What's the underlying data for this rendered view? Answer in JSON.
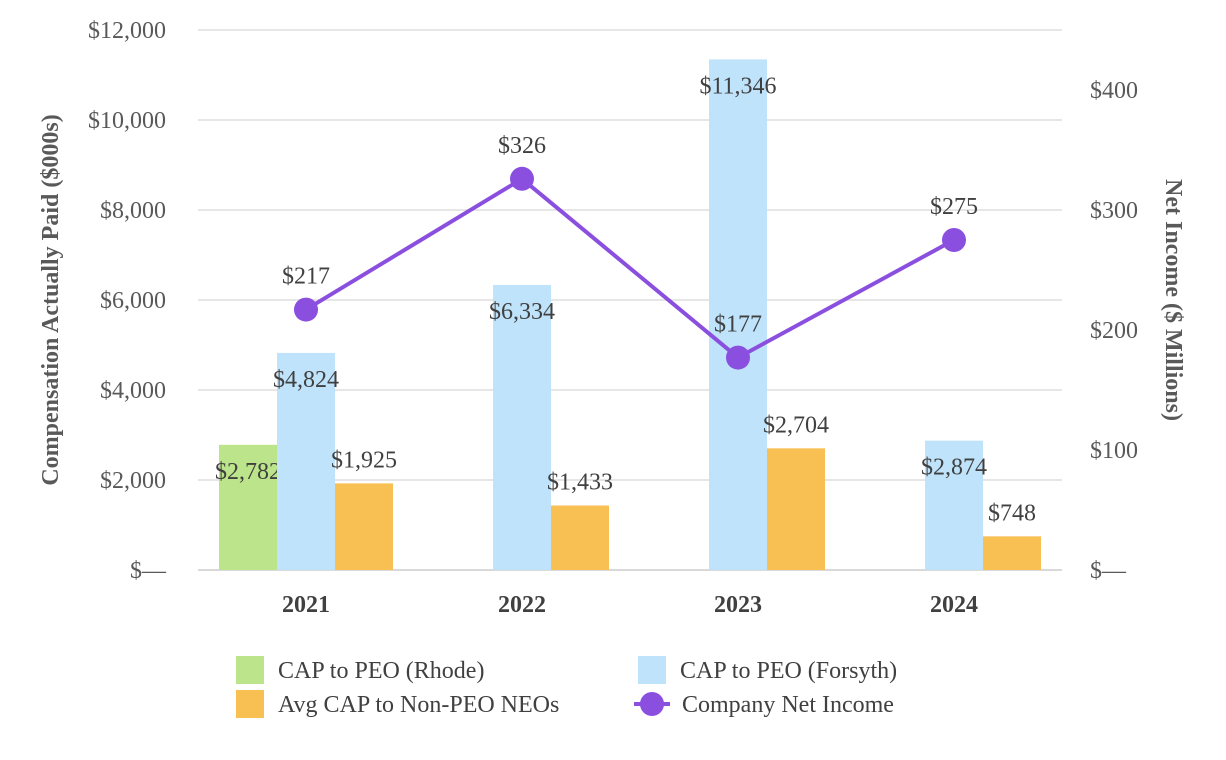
{
  "chart_data": {
    "type": "bar+line",
    "categories": [
      "2021",
      "2022",
      "2023",
      "2024"
    ],
    "left_axis": {
      "label": "Compensation Actually Paid ($000s)",
      "ylim": [
        0,
        12000
      ],
      "ticks": [
        0,
        2000,
        4000,
        6000,
        8000,
        10000,
        12000
      ],
      "tick_labels": [
        "$—",
        "$2,000",
        "$4,000",
        "$6,000",
        "$8,000",
        "$10,000",
        "$12,000"
      ]
    },
    "right_axis": {
      "label": "Net Income ($ Millions)",
      "ylim": [
        0,
        450
      ],
      "ticks": [
        0,
        100,
        200,
        300,
        400
      ],
      "tick_labels": [
        "$—",
        "$100",
        "$200",
        "$300",
        "$400"
      ]
    },
    "series": [
      {
        "name": "CAP to PEO (Rhode)",
        "type": "bar",
        "color": "#BCE48A",
        "values": [
          2782,
          null,
          null,
          null
        ],
        "labels": [
          "$2,782",
          null,
          null,
          null
        ]
      },
      {
        "name": "CAP to PEO (Forsyth)",
        "type": "bar",
        "color": "#BFE3FA",
        "values": [
          4824,
          6334,
          11346,
          2874
        ],
        "labels": [
          "$4,824",
          "$6,334",
          "$11,346",
          "$2,874"
        ]
      },
      {
        "name": "Avg CAP to Non-PEO NEOs",
        "type": "bar",
        "color": "#F8BF52",
        "values": [
          1925,
          1433,
          2704,
          748
        ],
        "labels": [
          "$1,925",
          "$1,433",
          "$2,704",
          "$748"
        ]
      },
      {
        "name": "Company Net Income",
        "type": "line",
        "axis": "right",
        "color": "#8B4FE0",
        "values": [
          217,
          326,
          177,
          275
        ],
        "labels": [
          "$217",
          "$326",
          "$177",
          "$275"
        ]
      }
    ],
    "legend": {
      "placement": "bottom",
      "order": [
        "CAP to PEO (Rhode)",
        "CAP to PEO (Forsyth)",
        "Avg CAP to Non-PEO NEOs",
        "Company Net Income"
      ]
    },
    "grid": true
  }
}
